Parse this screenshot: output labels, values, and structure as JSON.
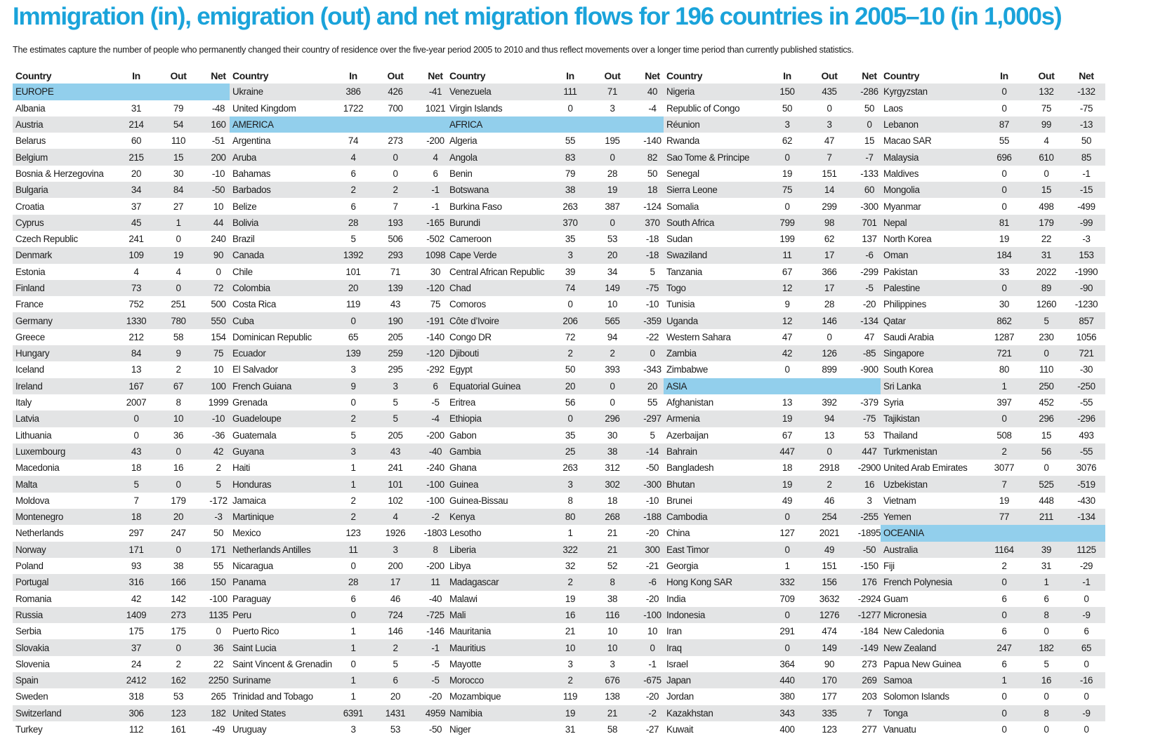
{
  "title": "Immigration (in), emigration (out) and net migration flows for 196 countries in 2005–10 (in 1,000s)",
  "subtitle": "The estimates capture the number of people who permanently changed their country of residence over the five-year period 2005 to 2010  and thus reflect movements over a longer time period than currently published statistics.",
  "colors": {
    "title": "#1aa3da",
    "region_band": "#92cfec",
    "row_shade": "#e3e4e5"
  },
  "headers": {
    "country": "Country",
    "in": "In",
    "out": "Out",
    "net": "Net"
  },
  "columns": [
    [
      {
        "region": "EUROPE"
      },
      [
        "Albania",
        "31",
        "79",
        "-48"
      ],
      [
        "Austria",
        "214",
        "54",
        "160"
      ],
      [
        "Belarus",
        "60",
        "110",
        "-51"
      ],
      [
        "Belgium",
        "215",
        "15",
        "200"
      ],
      [
        "Bosnia & Herzegovina",
        "20",
        "30",
        "-10"
      ],
      [
        "Bulgaria",
        "34",
        "84",
        "-50"
      ],
      [
        "Croatia",
        "37",
        "27",
        "10"
      ],
      [
        "Cyprus",
        "45",
        "1",
        "44"
      ],
      [
        "Czech Republic",
        "241",
        "0",
        "240"
      ],
      [
        "Denmark",
        "109",
        "19",
        "90"
      ],
      [
        "Estonia",
        "4",
        "4",
        "0"
      ],
      [
        "Finland",
        "73",
        "0",
        "72"
      ],
      [
        "France",
        "752",
        "251",
        "500"
      ],
      [
        "Germany",
        "1330",
        "780",
        "550"
      ],
      [
        "Greece",
        "212",
        "58",
        "154"
      ],
      [
        "Hungary",
        "84",
        "9",
        "75"
      ],
      [
        "Iceland",
        "13",
        "2",
        "10"
      ],
      [
        "Ireland",
        "167",
        "67",
        "100"
      ],
      [
        "Italy",
        "2007",
        "8",
        "1999"
      ],
      [
        "Latvia",
        "0",
        "10",
        "-10"
      ],
      [
        "Lithuania",
        "0",
        "36",
        "-36"
      ],
      [
        "Luxembourg",
        "43",
        "0",
        "42"
      ],
      [
        "Macedonia",
        "18",
        "16",
        "2"
      ],
      [
        "Malta",
        "5",
        "0",
        "5"
      ],
      [
        "Moldova",
        "7",
        "179",
        "-172"
      ],
      [
        "Montenegro",
        "18",
        "20",
        "-3"
      ],
      [
        "Netherlands",
        "297",
        "247",
        "50"
      ],
      [
        "Norway",
        "171",
        "0",
        "171"
      ],
      [
        "Poland",
        "93",
        "38",
        "55"
      ],
      [
        "Portugal",
        "316",
        "166",
        "150"
      ],
      [
        "Romania",
        "42",
        "142",
        "-100"
      ],
      [
        "Russia",
        "1409",
        "273",
        "1135"
      ],
      [
        "Serbia",
        "175",
        "175",
        "0"
      ],
      [
        "Slovakia",
        "37",
        "0",
        "36"
      ],
      [
        "Slovenia",
        "24",
        "2",
        "22"
      ],
      [
        "Spain",
        "2412",
        "162",
        "2250"
      ],
      [
        "Sweden",
        "318",
        "53",
        "265"
      ],
      [
        "Switzerland",
        "306",
        "123",
        "182"
      ],
      [
        "Turkey",
        "112",
        "161",
        "-49"
      ]
    ],
    [
      [
        "Ukraine",
        "386",
        "426",
        "-41"
      ],
      [
        "United Kingdom",
        "1722",
        "700",
        "1021"
      ],
      {
        "region": "AMERICA"
      },
      [
        "Argentina",
        "74",
        "273",
        "-200"
      ],
      [
        "Aruba",
        "4",
        "0",
        "4"
      ],
      [
        "Bahamas",
        "6",
        "0",
        "6"
      ],
      [
        "Barbados",
        "2",
        "2",
        "-1"
      ],
      [
        "Belize",
        "6",
        "7",
        "-1"
      ],
      [
        "Bolivia",
        "28",
        "193",
        "-165"
      ],
      [
        "Brazil",
        "5",
        "506",
        "-502"
      ],
      [
        "Canada",
        "1392",
        "293",
        "1098"
      ],
      [
        "Chile",
        "101",
        "71",
        "30"
      ],
      [
        "Colombia",
        "20",
        "139",
        "-120"
      ],
      [
        "Costa Rica",
        "119",
        "43",
        "75"
      ],
      [
        "Cuba",
        "0",
        "190",
        "-191"
      ],
      [
        "Dominican Republic",
        "65",
        "205",
        "-140"
      ],
      [
        "Ecuador",
        "139",
        "259",
        "-120"
      ],
      [
        "El Salvador",
        "3",
        "295",
        "-292"
      ],
      [
        "French Guiana",
        "9",
        "3",
        "6"
      ],
      [
        "Grenada",
        "0",
        "5",
        "-5"
      ],
      [
        "Guadeloupe",
        "2",
        "5",
        "-4"
      ],
      [
        "Guatemala",
        "5",
        "205",
        "-200"
      ],
      [
        "Guyana",
        "3",
        "43",
        "-40"
      ],
      [
        "Haiti",
        "1",
        "241",
        "-240"
      ],
      [
        "Honduras",
        "1",
        "101",
        "-100"
      ],
      [
        "Jamaica",
        "2",
        "102",
        "-100"
      ],
      [
        "Martinique",
        "2",
        "4",
        "-2"
      ],
      [
        "Mexico",
        "123",
        "1926",
        "-1803"
      ],
      [
        "Netherlands Antilles",
        "11",
        "3",
        "8"
      ],
      [
        "Nicaragua",
        "0",
        "200",
        "-200"
      ],
      [
        "Panama",
        "28",
        "17",
        "11"
      ],
      [
        "Paraguay",
        "6",
        "46",
        "-40"
      ],
      [
        "Peru",
        "0",
        "724",
        "-725"
      ],
      [
        "Puerto Rico",
        "1",
        "146",
        "-146"
      ],
      [
        "Saint Lucia",
        "1",
        "2",
        "-1"
      ],
      [
        "Saint Vincent & Grenadines",
        "0",
        "5",
        "-5"
      ],
      [
        "Suriname",
        "1",
        "6",
        "-5"
      ],
      [
        "Trinidad and Tobago",
        "1",
        "20",
        "-20"
      ],
      [
        "United States",
        "6391",
        "1431",
        "4959"
      ],
      [
        "Uruguay",
        "3",
        "53",
        "-50"
      ]
    ],
    [
      [
        "Venezuela",
        "111",
        "71",
        "40"
      ],
      [
        "Virgin Islands",
        "0",
        "3",
        "-4"
      ],
      {
        "region": "AFRICA"
      },
      [
        "Algeria",
        "55",
        "195",
        "-140"
      ],
      [
        "Angola",
        "83",
        "0",
        "82"
      ],
      [
        "Benin",
        "79",
        "28",
        "50"
      ],
      [
        "Botswana",
        "38",
        "19",
        "18"
      ],
      [
        "Burkina Faso",
        "263",
        "387",
        "-124"
      ],
      [
        "Burundi",
        "370",
        "0",
        "370"
      ],
      [
        "Cameroon",
        "35",
        "53",
        "-18"
      ],
      [
        "Cape Verde",
        "3",
        "20",
        "-18"
      ],
      [
        "Central African Republic",
        "39",
        "34",
        "5"
      ],
      [
        "Chad",
        "74",
        "149",
        "-75"
      ],
      [
        "Comoros",
        "0",
        "10",
        "-10"
      ],
      [
        "Côte d’Ivoire",
        "206",
        "565",
        "-359"
      ],
      [
        "Congo DR",
        "72",
        "94",
        "-22"
      ],
      [
        "Djibouti",
        "2",
        "2",
        "0"
      ],
      [
        "Egypt",
        "50",
        "393",
        "-343"
      ],
      [
        "Equatorial Guinea",
        "20",
        "0",
        "20"
      ],
      [
        "Eritrea",
        "56",
        "0",
        "55"
      ],
      [
        "Ethiopia",
        "0",
        "296",
        "-297"
      ],
      [
        "Gabon",
        "35",
        "30",
        "5"
      ],
      [
        "Gambia",
        "25",
        "38",
        "-14"
      ],
      [
        "Ghana",
        "263",
        "312",
        "-50"
      ],
      [
        "Guinea",
        "3",
        "302",
        "-300"
      ],
      [
        "Guinea-Bissau",
        "8",
        "18",
        "-10"
      ],
      [
        "Kenya",
        "80",
        "268",
        "-188"
      ],
      [
        "Lesotho",
        "1",
        "21",
        "-20"
      ],
      [
        "Liberia",
        "322",
        "21",
        "300"
      ],
      [
        "Libya",
        "32",
        "52",
        "-21"
      ],
      [
        "Madagascar",
        "2",
        "8",
        "-6"
      ],
      [
        "Malawi",
        "19",
        "38",
        "-20"
      ],
      [
        "Mali",
        "16",
        "116",
        "-100"
      ],
      [
        "Mauritania",
        "21",
        "10",
        "10"
      ],
      [
        "Mauritius",
        "10",
        "10",
        "0"
      ],
      [
        "Mayotte",
        "3",
        "3",
        "-1"
      ],
      [
        "Morocco",
        "2",
        "676",
        "-675"
      ],
      [
        "Mozambique",
        "119",
        "138",
        "-20"
      ],
      [
        "Namibia",
        "19",
        "21",
        "-2"
      ],
      [
        "Niger",
        "31",
        "58",
        "-27"
      ]
    ],
    [
      [
        "Nigeria",
        "150",
        "435",
        "-286"
      ],
      [
        "Republic of Congo",
        "50",
        "0",
        "50"
      ],
      [
        "Réunion",
        "3",
        "3",
        "0"
      ],
      [
        "Rwanda",
        "62",
        "47",
        "15"
      ],
      [
        "Sao Tome & Principe",
        "0",
        "7",
        "-7"
      ],
      [
        "Senegal",
        "19",
        "151",
        "-133"
      ],
      [
        "Sierra Leone",
        "75",
        "14",
        "60"
      ],
      [
        "Somalia",
        "0",
        "299",
        "-300"
      ],
      [
        "South Africa",
        "799",
        "98",
        "701"
      ],
      [
        "Sudan",
        "199",
        "62",
        "137"
      ],
      [
        "Swaziland",
        "11",
        "17",
        "-6"
      ],
      [
        "Tanzania",
        "67",
        "366",
        "-299"
      ],
      [
        "Togo",
        "12",
        "17",
        "-5"
      ],
      [
        "Tunisia",
        "9",
        "28",
        "-20"
      ],
      [
        "Uganda",
        "12",
        "146",
        "-134"
      ],
      [
        "Western Sahara",
        "47",
        "0",
        "47"
      ],
      [
        "Zambia",
        "42",
        "126",
        "-85"
      ],
      [
        "Zimbabwe",
        "0",
        "899",
        "-900"
      ],
      {
        "region": "ASIA"
      },
      [
        "Afghanistan",
        "13",
        "392",
        "-379"
      ],
      [
        "Armenia",
        "19",
        "94",
        "-75"
      ],
      [
        "Azerbaijan",
        "67",
        "13",
        "53"
      ],
      [
        "Bahrain",
        "447",
        "0",
        "447"
      ],
      [
        "Bangladesh",
        "18",
        "2918",
        "-2900"
      ],
      [
        "Bhutan",
        "19",
        "2",
        "16"
      ],
      [
        "Brunei",
        "49",
        "46",
        "3"
      ],
      [
        "Cambodia",
        "0",
        "254",
        "-255"
      ],
      [
        "China",
        "127",
        "2021",
        "-1895"
      ],
      [
        "East Timor",
        "0",
        "49",
        "-50"
      ],
      [
        "Georgia",
        "1",
        "151",
        "-150"
      ],
      [
        "Hong Kong SAR",
        "332",
        "156",
        "176"
      ],
      [
        "India",
        "709",
        "3632",
        "-2924"
      ],
      [
        "Indonesia",
        "0",
        "1276",
        "-1277"
      ],
      [
        "Iran",
        "291",
        "474",
        "-184"
      ],
      [
        "Iraq",
        "0",
        "149",
        "-149"
      ],
      [
        "Israel",
        "364",
        "90",
        "273"
      ],
      [
        "Japan",
        "440",
        "170",
        "269"
      ],
      [
        "Jordan",
        "380",
        "177",
        "203"
      ],
      [
        "Kazakhstan",
        "343",
        "335",
        "7"
      ],
      [
        "Kuwait",
        "400",
        "123",
        "277"
      ]
    ],
    [
      [
        "Kyrgyzstan",
        "0",
        "132",
        "-132"
      ],
      [
        "Laos",
        "0",
        "75",
        "-75"
      ],
      [
        "Lebanon",
        "87",
        "99",
        "-13"
      ],
      [
        "Macao SAR",
        "55",
        "4",
        "50"
      ],
      [
        "Malaysia",
        "696",
        "610",
        "85"
      ],
      [
        "Maldives",
        "0",
        "0",
        "-1"
      ],
      [
        "Mongolia",
        "0",
        "15",
        "-15"
      ],
      [
        "Myanmar",
        "0",
        "498",
        "-499"
      ],
      [
        "Nepal",
        "81",
        "179",
        "-99"
      ],
      [
        "North Korea",
        "19",
        "22",
        "-3"
      ],
      [
        "Oman",
        "184",
        "31",
        "153"
      ],
      [
        "Pakistan",
        "33",
        "2022",
        "-1990"
      ],
      [
        "Palestine",
        "0",
        "89",
        "-90"
      ],
      [
        "Philippines",
        "30",
        "1260",
        "-1230"
      ],
      [
        "Qatar",
        "862",
        "5",
        "857"
      ],
      [
        "Saudi Arabia",
        "1287",
        "230",
        "1056"
      ],
      [
        "Singapore",
        "721",
        "0",
        "721"
      ],
      [
        "South Korea",
        "80",
        "110",
        "-30"
      ],
      [
        "Sri Lanka",
        "1",
        "250",
        "-250"
      ],
      [
        "Syria",
        "397",
        "452",
        "-55"
      ],
      [
        "Tajikistan",
        "0",
        "296",
        "-296"
      ],
      [
        "Thailand",
        "508",
        "15",
        "493"
      ],
      [
        "Turkmenistan",
        "2",
        "56",
        "-55"
      ],
      [
        "United Arab Emirates",
        "3077",
        "0",
        "3076"
      ],
      [
        "Uzbekistan",
        "7",
        "525",
        "-519"
      ],
      [
        "Vietnam",
        "19",
        "448",
        "-430"
      ],
      [
        "Yemen",
        "77",
        "211",
        "-134"
      ],
      {
        "region": "OCEANIA"
      },
      [
        "Australia",
        "1164",
        "39",
        "1125"
      ],
      [
        "Fiji",
        "2",
        "31",
        "-29"
      ],
      [
        "French Polynesia",
        "0",
        "1",
        "-1"
      ],
      [
        "Guam",
        "6",
        "6",
        "0"
      ],
      [
        "Micronesia",
        "0",
        "8",
        "-9"
      ],
      [
        "New Caledonia",
        "6",
        "0",
        "6"
      ],
      [
        "New Zealand",
        "247",
        "182",
        "65"
      ],
      [
        "Papua New Guinea",
        "6",
        "5",
        "0"
      ],
      [
        "Samoa",
        "1",
        "16",
        "-16"
      ],
      [
        "Solomon Islands",
        "0",
        "0",
        "0"
      ],
      [
        "Tonga",
        "0",
        "8",
        "-9"
      ],
      [
        "Vanuatu",
        "0",
        "0",
        "0"
      ]
    ]
  ]
}
